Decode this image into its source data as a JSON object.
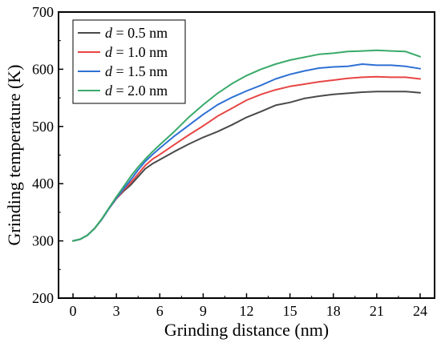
{
  "chart_data": {
    "type": "line",
    "xlabel": "Grinding distance (nm)",
    "ylabel": "Grinding temperature (K)",
    "xlim": [
      -1,
      25
    ],
    "ylim": [
      200,
      700
    ],
    "xticks": [
      0,
      3,
      6,
      9,
      12,
      15,
      18,
      21,
      24
    ],
    "yticks": [
      200,
      300,
      400,
      500,
      600,
      700
    ],
    "grid": false,
    "legend_position": "top-left",
    "series": [
      {
        "name": "d = 0.5 nm",
        "legend_var": "d",
        "legend_rest": " = 0.5 nm",
        "color": "#4a4a4a",
        "x": [
          0,
          0.5,
          1,
          1.5,
          2,
          2.5,
          3,
          3.5,
          4,
          4.5,
          5,
          5.5,
          6,
          7,
          8,
          9,
          10,
          11,
          12,
          13,
          14,
          15,
          16,
          17,
          18,
          19,
          20,
          21,
          22,
          23,
          24
        ],
        "y": [
          300,
          303,
          310,
          322,
          338,
          357,
          374,
          387,
          398,
          412,
          426,
          435,
          442,
          456,
          469,
          481,
          491,
          503,
          516,
          526,
          537,
          542,
          549,
          553,
          556,
          558,
          560,
          561,
          561,
          561,
          559
        ]
      },
      {
        "name": "d = 1.0 nm",
        "legend_var": "d",
        "legend_rest": " = 1.0 nm",
        "color": "#e84545",
        "x": [
          0,
          0.5,
          1,
          1.5,
          2,
          2.5,
          3,
          3.5,
          4,
          4.5,
          5,
          5.5,
          6,
          7,
          8,
          9,
          10,
          11,
          12,
          13,
          14,
          15,
          16,
          17,
          18,
          19,
          20,
          21,
          22,
          23,
          24
        ],
        "y": [
          300,
          303,
          310,
          322,
          338,
          357,
          374,
          389,
          402,
          417,
          432,
          443,
          451,
          468,
          485,
          501,
          518,
          532,
          546,
          556,
          564,
          570,
          574,
          578,
          581,
          584,
          586,
          587,
          586,
          586,
          583
        ]
      },
      {
        "name": "d = 1.5 nm",
        "legend_var": "d",
        "legend_rest": " = 1.5 nm",
        "color": "#2e70d4",
        "x": [
          0,
          0.5,
          1,
          1.5,
          2,
          2.5,
          3,
          3.5,
          4,
          4.5,
          5,
          5.5,
          6,
          7,
          8,
          9,
          10,
          11,
          12,
          13,
          14,
          15,
          16,
          17,
          18,
          19,
          20,
          21,
          22,
          23,
          24
        ],
        "y": [
          300,
          303,
          310,
          322,
          338,
          357,
          375,
          391,
          407,
          424,
          439,
          451,
          462,
          483,
          502,
          521,
          538,
          551,
          562,
          572,
          583,
          591,
          597,
          602,
          604,
          605,
          609,
          607,
          607,
          605,
          601
        ]
      },
      {
        "name": "d = 2.0 nm",
        "legend_var": "d",
        "legend_rest": " = 2.0 nm",
        "color": "#3aaa6a",
        "x": [
          0,
          0.5,
          1,
          1.5,
          2,
          2.5,
          3,
          3.5,
          4,
          4.5,
          5,
          5.5,
          6,
          7,
          8,
          9,
          10,
          11,
          12,
          13,
          14,
          15,
          16,
          17,
          18,
          19,
          20,
          21,
          22,
          23,
          24
        ],
        "y": [
          300,
          303,
          310,
          322,
          339,
          358,
          377,
          395,
          413,
          429,
          443,
          456,
          468,
          491,
          516,
          538,
          558,
          575,
          589,
          600,
          609,
          616,
          621,
          626,
          628,
          631,
          632,
          633,
          632,
          631,
          622
        ]
      }
    ]
  }
}
